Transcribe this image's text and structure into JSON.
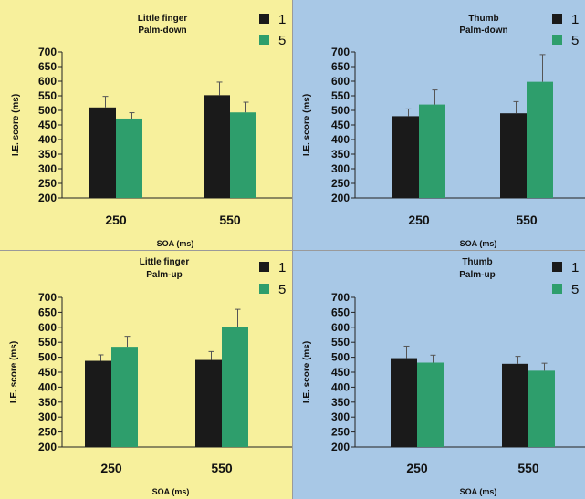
{
  "figure": {
    "colors": {
      "yellow_panel": "#f7f09c",
      "blue_panel": "#a8c8e6",
      "series_1": "#1a1a1a",
      "series_5": "#2e9e6c",
      "error_bar": "#555555"
    }
  },
  "chart_data": [
    {
      "type": "bar",
      "panel": "top-left",
      "background": "yellow",
      "title": [
        "Little finger",
        "Palm-down"
      ],
      "categories": [
        "250",
        "550"
      ],
      "xlabel": "SOA (ms)",
      "ylabel": "I.E. score (ms)",
      "ylim": [
        200,
        700
      ],
      "yticks": [
        200,
        250,
        300,
        350,
        400,
        450,
        500,
        550,
        600,
        650,
        700
      ],
      "legend": {
        "placement": "top-right",
        "entries": [
          "1",
          "5"
        ]
      },
      "series": [
        {
          "name": "1",
          "values": [
            510,
            552
          ],
          "errors": [
            38,
            45
          ]
        },
        {
          "name": "5",
          "values": [
            472,
            493
          ],
          "errors": [
            20,
            35
          ]
        }
      ]
    },
    {
      "type": "bar",
      "panel": "top-right",
      "background": "blue",
      "title": [
        "Thumb",
        "Palm-down"
      ],
      "categories": [
        "250",
        "550"
      ],
      "xlabel": "SOA (ms)",
      "ylabel": "I.E. score (ms)",
      "ylim": [
        200,
        700
      ],
      "yticks": [
        200,
        250,
        300,
        350,
        400,
        450,
        500,
        550,
        600,
        650,
        700
      ],
      "legend": {
        "placement": "top-right",
        "entries": [
          "1",
          "5"
        ]
      },
      "series": [
        {
          "name": "1",
          "values": [
            480,
            490
          ],
          "errors": [
            25,
            40
          ]
        },
        {
          "name": "5",
          "values": [
            520,
            598
          ],
          "errors": [
            50,
            93
          ]
        }
      ]
    },
    {
      "type": "bar",
      "panel": "bottom-left",
      "background": "yellow",
      "title": [
        "Little finger",
        "Palm-up"
      ],
      "categories": [
        "250",
        "550"
      ],
      "xlabel": "SOA (ms)",
      "ylabel": "I.E. score (ms)",
      "ylim": [
        200,
        700
      ],
      "yticks": [
        200,
        250,
        300,
        350,
        400,
        450,
        500,
        550,
        600,
        650,
        700
      ],
      "legend": {
        "placement": "top-right",
        "entries": [
          "1",
          "5"
        ]
      },
      "series": [
        {
          "name": "1",
          "values": [
            488,
            491
          ],
          "errors": [
            20,
            28
          ]
        },
        {
          "name": "5",
          "values": [
            535,
            600
          ],
          "errors": [
            35,
            60
          ]
        }
      ]
    },
    {
      "type": "bar",
      "panel": "bottom-right",
      "background": "blue",
      "title": [
        "Thumb",
        "Palm-up"
      ],
      "categories": [
        "250",
        "550"
      ],
      "xlabel": "SOA (ms)",
      "ylabel": "I.E. score (ms)",
      "ylim": [
        200,
        700
      ],
      "yticks": [
        200,
        250,
        300,
        350,
        400,
        450,
        500,
        550,
        600,
        650,
        700
      ],
      "legend": {
        "placement": "top-right",
        "entries": [
          "1",
          "5"
        ]
      },
      "series": [
        {
          "name": "1",
          "values": [
            497,
            478
          ],
          "errors": [
            40,
            25
          ]
        },
        {
          "name": "5",
          "values": [
            482,
            455
          ],
          "errors": [
            25,
            25
          ]
        }
      ]
    }
  ]
}
